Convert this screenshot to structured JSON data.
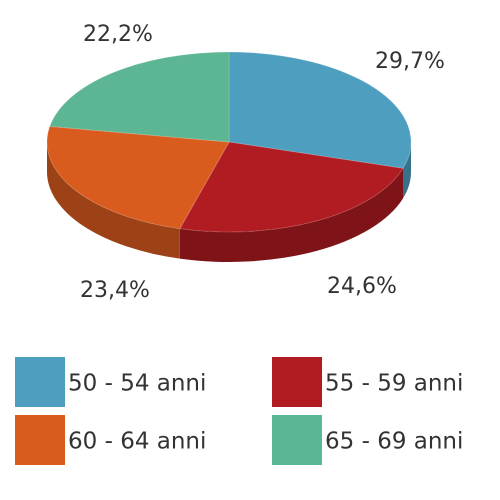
{
  "chart_data": {
    "type": "pie",
    "categories": [
      "50 - 54 anni",
      "55 - 59 anni",
      "60 - 64 anni",
      "65 - 69 anni"
    ],
    "values": [
      29.7,
      24.6,
      23.4,
      22.2
    ],
    "value_labels": [
      "29,7%",
      "24,6%",
      "23,4%",
      "22,2%"
    ],
    "colors": [
      "#4e9ec0",
      "#b11c22",
      "#d95c1e",
      "#5cb593"
    ]
  }
}
